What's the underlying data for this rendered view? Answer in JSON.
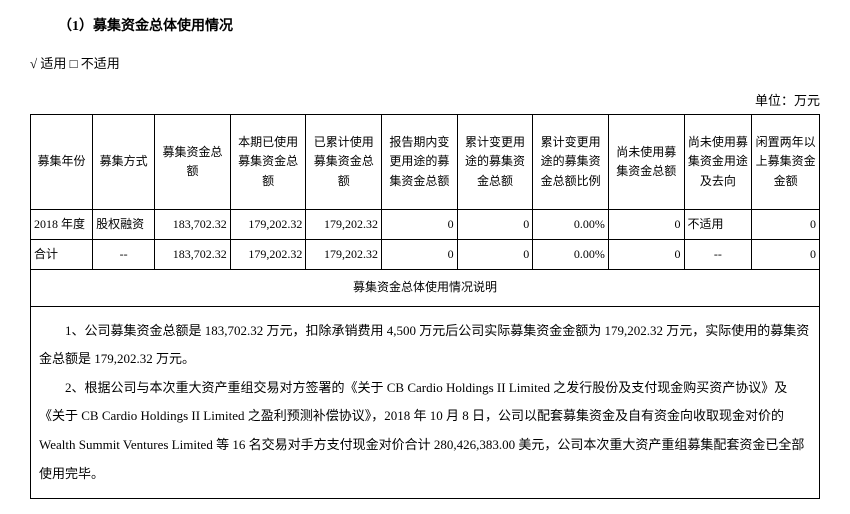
{
  "section": {
    "title": "（1）募集资金总体使用情况",
    "applicable": "√ 适用 □ 不适用",
    "unit": "单位：万元"
  },
  "table": {
    "headers": {
      "c0": "募集年份",
      "c1": "募集方式",
      "c2": "募集资金总额",
      "c3": "本期已使用募集资金总额",
      "c4": "已累计使用募集资金总额",
      "c5": "报告期内变更用途的募集资金总额",
      "c6": "累计变更用途的募集资金总额",
      "c7": "累计变更用途的募集资金总额比例",
      "c8": "尚未使用募集资金总额",
      "c9": "尚未使用募集资金用途及去向",
      "c10": "闲置两年以上募集资金金额"
    },
    "rows": [
      {
        "year": "2018 年度",
        "method": "股权融资",
        "total": "183,702.32",
        "usedCurrent": "179,202.32",
        "usedCum": "179,202.32",
        "changedPeriod": "0",
        "changedCum": "0",
        "changedRatio": "0.00%",
        "unusedTotal": "0",
        "unusedUse": "不适用",
        "idle": "0"
      },
      {
        "year": "合计",
        "method": "--",
        "total": "183,702.32",
        "usedCurrent": "179,202.32",
        "usedCum": "179,202.32",
        "changedPeriod": "0",
        "changedCum": "0",
        "changedRatio": "0.00%",
        "unusedTotal": "0",
        "unusedUse": "--",
        "idle": "0"
      }
    ],
    "descHeader": "募集资金总体使用情况说明",
    "desc": {
      "p1": "1、公司募集资金总额是 183,702.32 万元，扣除承销费用 4,500 万元后公司实际募集资金金额为 179,202.32 万元，实际使用的募集资金总额是 179,202.32 万元。",
      "p2": "2、根据公司与本次重大资产重组交易对方签署的《关于 CB Cardio Holdings II Limited 之发行股份及支付现金购买资产协议》及《关于 CB Cardio Holdings II Limited 之盈利预测补偿协议》，2018 年 10 月 8 日，公司以配套募集资金及自有资金向收取现金对价的 Wealth Summit Ventures Limited 等 16 名交易对手方支付现金对价合计 280,426,383.00 美元，公司本次重大资产重组募集配套资金已全部使用完毕。"
    }
  }
}
